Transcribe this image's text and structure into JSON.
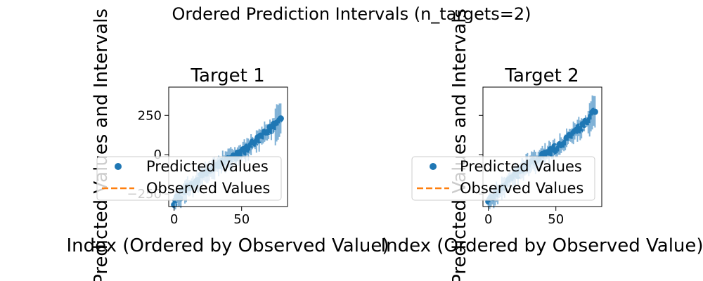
{
  "figure": {
    "title": "Ordered Prediction Intervals (n_targets=2)"
  },
  "colors": {
    "predicted": "#1f77b4",
    "interval": "#7fb1d6",
    "observed": "#ff7f0e"
  },
  "legend": {
    "predicted_label": "Predicted Values",
    "observed_label": "Observed Values",
    "placement": "lower-left"
  },
  "chart_data": [
    {
      "type": "scatter",
      "title": "Target 1",
      "xlabel": "Index (Ordered by Observed Value)",
      "ylabel": "Predicted Values and Intervals",
      "xlim": [
        -4,
        84
      ],
      "ylim": [
        -330,
        430
      ],
      "xticks": [
        {
          "value": 0,
          "label": "0"
        },
        {
          "value": 50,
          "label": "50"
        }
      ],
      "yticks": [
        {
          "value": -250,
          "label": "−250"
        },
        {
          "value": 0,
          "label": "0"
        },
        {
          "value": 250,
          "label": "250"
        }
      ],
      "grid": false,
      "n_points": 80,
      "observed_range": [
        -300,
        225
      ],
      "series": [
        {
          "name": "Predicted Values",
          "kind": "points_with_intervals"
        },
        {
          "name": "Observed Values",
          "kind": "dashed_line"
        }
      ]
    },
    {
      "type": "scatter",
      "title": "Target 2",
      "xlabel": "Index (Ordered by Observed Value)",
      "ylabel": "Predicted Values and Intervals",
      "xlim": [
        -4,
        84
      ],
      "ylim": [
        -330,
        430
      ],
      "xticks": [
        {
          "value": 0,
          "label": "0"
        },
        {
          "value": 50,
          "label": "50"
        }
      ],
      "yticks": [
        {
          "value": -250,
          "label": ""
        },
        {
          "value": 0,
          "label": ""
        },
        {
          "value": 250,
          "label": ""
        }
      ],
      "grid": false,
      "n_points": 80,
      "observed_range": [
        -300,
        270
      ],
      "series": [
        {
          "name": "Predicted Values",
          "kind": "points_with_intervals"
        },
        {
          "name": "Observed Values",
          "kind": "dashed_line"
        }
      ]
    }
  ]
}
